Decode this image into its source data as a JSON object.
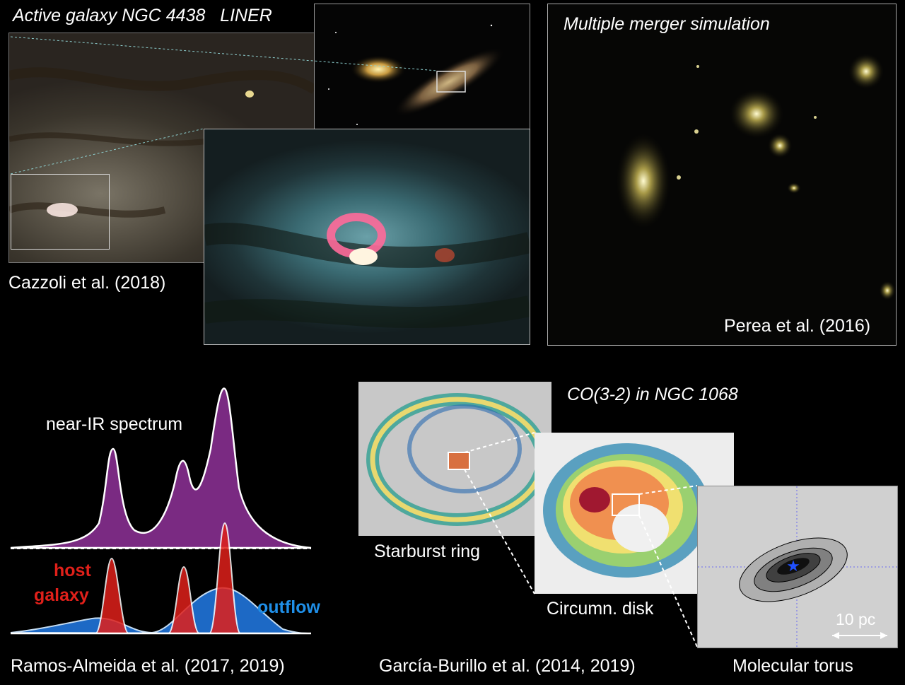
{
  "top_left": {
    "title": "Active galaxy NGC 4438   LINER",
    "credit": "Cazzoli et al. (2018)"
  },
  "top_right": {
    "title": "Multiple merger simulation",
    "credit": "Perea et al. (2016)"
  },
  "bottom_left": {
    "spectrum_label": "near-IR spectrum",
    "host_label_line1": "host",
    "host_label_line2": "galaxy",
    "outflow_label": "outflow",
    "credit": "Ramos-Almeida et al. (2017, 2019)",
    "colors": {
      "spectrum": "#7a2a82",
      "host": "#e0201a",
      "outflow": "#1f6fd0"
    }
  },
  "bottom_right": {
    "title": "CO(3-2) in NGC 1068",
    "ring_label": "Starburst ring",
    "disk_label": "Circumn. disk",
    "torus_label": "Molecular torus",
    "scale_label": "10 pc",
    "credit": "García-Burillo et al. (2014, 2019)"
  }
}
